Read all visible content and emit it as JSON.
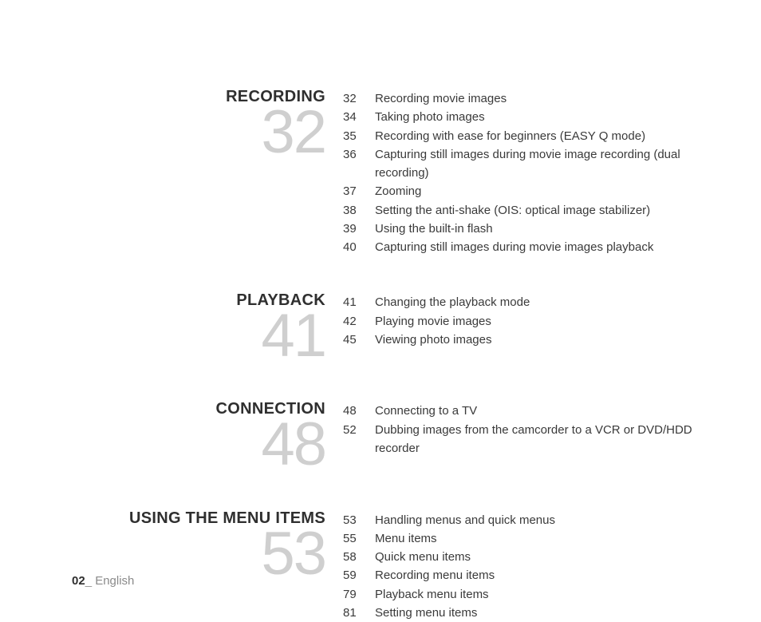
{
  "footer": {
    "page": "02",
    "sep": "_",
    "lang": " English"
  },
  "sections": [
    {
      "title": "RECORDING",
      "number": "32",
      "spacer_after": "lg",
      "entries": [
        {
          "page": "32",
          "text": "Recording movie images"
        },
        {
          "page": "34",
          "text": "Taking photo images"
        },
        {
          "page": "35",
          "text": "Recording with ease for beginners (EASY Q mode)"
        },
        {
          "page": "36",
          "text": "Capturing still images during movie image recording (dual recording)"
        },
        {
          "page": "37",
          "text": "Zooming"
        },
        {
          "page": "38",
          "text": "Setting the anti-shake (OIS: optical image stabilizer)"
        },
        {
          "page": "39",
          "text": "Using the built-in flash"
        },
        {
          "page": "40",
          "text": "Capturing still images during movie images playback"
        }
      ]
    },
    {
      "title": "PLAYBACK",
      "number": "41",
      "spacer_after": "lg",
      "entries": [
        {
          "page": "41",
          "text": "Changing the playback mode"
        },
        {
          "page": "42",
          "text": "Playing movie images"
        },
        {
          "page": "45",
          "text": "Viewing photo images"
        }
      ]
    },
    {
      "title": "CONNECTION",
      "number": "48",
      "spacer_after": "lg",
      "entries": [
        {
          "page": "48",
          "text": "Connecting to a TV"
        },
        {
          "page": "52",
          "text": "Dubbing images from the camcorder to a VCR or DVD/HDD recorder"
        }
      ]
    },
    {
      "title": "USING THE MENU ITEMS",
      "number": "53",
      "spacer_after": "none",
      "entries": [
        {
          "page": "53",
          "text": "Handling menus and quick menus"
        },
        {
          "page": "55",
          "text": "Menu items"
        },
        {
          "page": "58",
          "text": "Quick menu items"
        },
        {
          "page": "59",
          "text": "Recording menu items"
        },
        {
          "page": "79",
          "text": "Playback menu items"
        },
        {
          "page": "81",
          "text": "Setting menu items"
        }
      ]
    }
  ]
}
